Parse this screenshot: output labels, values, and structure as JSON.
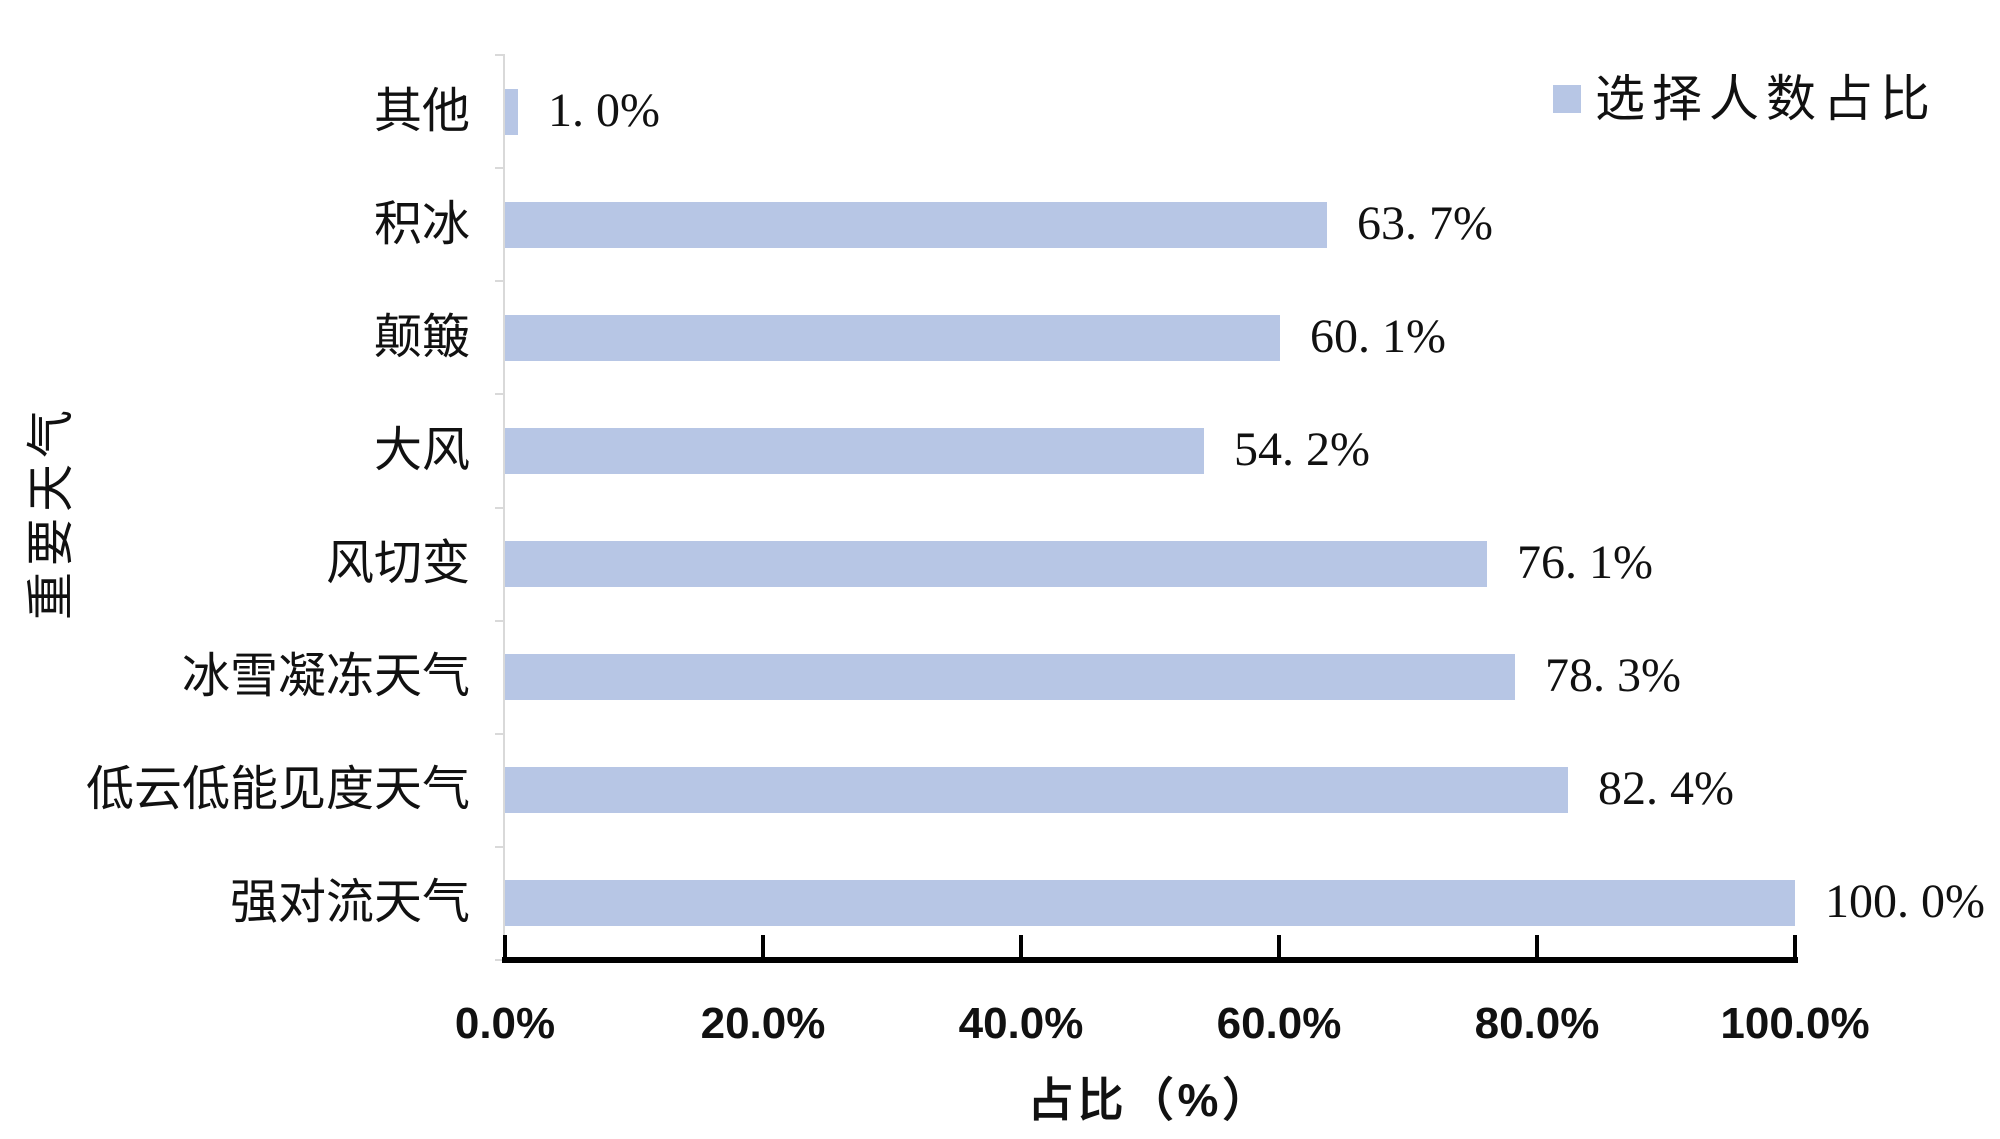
{
  "chart_data": {
    "type": "bar",
    "orientation": "horizontal",
    "title": "",
    "xlabel": "占比（%）",
    "ylabel": "重要天气",
    "categories": [
      "其他",
      "积冰",
      "颠簸",
      "大风",
      "风切变",
      "冰雪凝冻天气",
      "低云低能见度天气",
      "强对流天气"
    ],
    "series": [
      {
        "name": "选择人数占比",
        "values": [
          1.0,
          63.7,
          60.1,
          54.2,
          76.1,
          78.3,
          82.4,
          100.0
        ]
      }
    ],
    "value_labels": [
      "1. 0%",
      "63. 7%",
      "60. 1%",
      "54. 2%",
      "76. 1%",
      "78. 3%",
      "82. 4%",
      "100. 0%"
    ],
    "x_ticks": [
      "0.0%",
      "20.0%",
      "40.0%",
      "60.0%",
      "80.0%",
      "100.0%"
    ],
    "xlim": [
      0,
      100
    ],
    "grid": false,
    "legend_position": "top-right",
    "colors": {
      "bar": "#b7c6e5",
      "axis": "#000000",
      "category_axis": "#d9d9d9",
      "text": "#111111",
      "background": "#ffffff"
    }
  }
}
